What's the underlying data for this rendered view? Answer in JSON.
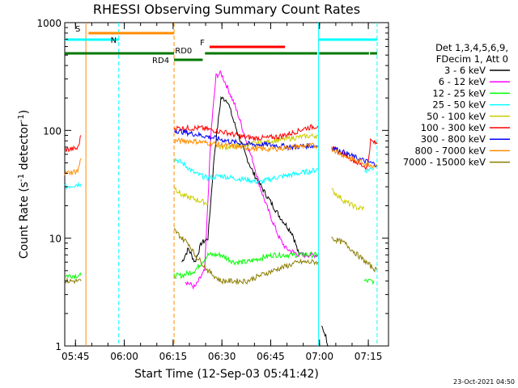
{
  "chart_data": {
    "type": "line",
    "title": "RHESSI Observing Summary Count Rates",
    "xlabel": "Start Time (12-Sep-03 05:41:42)",
    "ylabel_main": "Count Rate (s",
    "ylabel_sup1": "-1",
    "ylabel_mid": " detector",
    "ylabel_sup2": "-1",
    "ylabel_end": ")",
    "yscale": "log",
    "ylim": [
      1,
      1000
    ],
    "xlim_minutes": [
      0,
      99.5
    ],
    "x_ticks": [
      {
        "label": "05:45",
        "t": 3.3
      },
      {
        "label": "06:00",
        "t": 18.3
      },
      {
        "label": "06:15",
        "t": 33.3
      },
      {
        "label": "06:30",
        "t": 48.3
      },
      {
        "label": "06:45",
        "t": 63.3
      },
      {
        "label": "07:00",
        "t": 78.3
      },
      {
        "label": "07:15",
        "t": 93.3
      }
    ],
    "y_ticks": [
      {
        "label": "1",
        "v": 1
      },
      {
        "label": "10",
        "v": 10
      },
      {
        "label": "100",
        "v": 100
      },
      {
        "label": "1000",
        "v": 1000
      }
    ],
    "legend_header": [
      "Det 1,3,4,5,6,9,",
      "FDecim 1, Att 0"
    ],
    "series": [
      {
        "name": "3 - 6 keV",
        "color": "#000000",
        "points": [
          [
            0,
            null
          ],
          [
            33.6,
            null
          ],
          [
            36,
            6
          ],
          [
            38,
            8
          ],
          [
            40,
            6
          ],
          [
            42,
            9
          ],
          [
            44,
            10
          ],
          [
            46,
            60
          ],
          [
            48,
            200
          ],
          [
            50,
            190
          ],
          [
            52,
            120
          ],
          [
            55,
            65
          ],
          [
            58,
            40
          ],
          [
            62,
            25
          ],
          [
            66,
            16
          ],
          [
            70,
            11
          ],
          [
            72,
            7
          ],
          [
            76,
            null
          ],
          [
            79,
            1.5
          ],
          [
            80,
            1.3
          ],
          [
            81,
            1
          ]
        ]
      },
      {
        "name": "6 - 12 keV",
        "color": "#ff00ff",
        "points": [
          [
            0,
            null
          ],
          [
            33.6,
            null
          ],
          [
            37,
            4
          ],
          [
            40,
            3.5
          ],
          [
            43,
            5
          ],
          [
            45,
            100
          ],
          [
            46.5,
            320
          ],
          [
            48,
            340
          ],
          [
            50,
            250
          ],
          [
            52,
            180
          ],
          [
            54,
            120
          ],
          [
            56,
            75
          ],
          [
            58,
            50
          ],
          [
            60,
            30
          ],
          [
            62,
            20
          ],
          [
            64,
            14
          ],
          [
            66,
            10
          ],
          [
            68,
            8
          ],
          [
            70,
            7.5
          ],
          [
            72,
            7
          ],
          [
            74,
            7
          ],
          [
            76,
            7
          ],
          [
            77.8,
            7
          ]
        ]
      },
      {
        "name": "12 - 25 keV",
        "color": "#00ff00",
        "points": [
          [
            0,
            4.5
          ],
          [
            5,
            4.5
          ],
          [
            7,
            null
          ],
          [
            33.6,
            4.5
          ],
          [
            36,
            4.5
          ],
          [
            40,
            5
          ],
          [
            44,
            7
          ],
          [
            48,
            7
          ],
          [
            52,
            6
          ],
          [
            56,
            6
          ],
          [
            60,
            6.5
          ],
          [
            64,
            7
          ],
          [
            68,
            7
          ],
          [
            72,
            7
          ],
          [
            76,
            7
          ],
          [
            78,
            7
          ],
          [
            79,
            null
          ],
          [
            92,
            4
          ],
          [
            95,
            4
          ]
        ]
      },
      {
        "name": "25 - 50 keV",
        "color": "#00ffff",
        "points": [
          [
            0,
            30
          ],
          [
            5,
            32
          ],
          [
            6,
            null
          ],
          [
            33.6,
            55
          ],
          [
            36,
            50
          ],
          [
            38,
            45
          ],
          [
            40,
            40
          ],
          [
            42,
            38
          ],
          [
            44,
            36
          ],
          [
            48,
            38
          ],
          [
            52,
            36
          ],
          [
            56,
            35
          ],
          [
            60,
            33
          ],
          [
            64,
            36
          ],
          [
            68,
            38
          ],
          [
            72,
            40
          ],
          [
            76,
            42
          ],
          [
            77.8,
            44
          ],
          [
            79,
            null
          ],
          [
            92,
            42
          ],
          [
            95,
            45
          ]
        ]
      },
      {
        "name": "50 - 100 keV",
        "color": "#cccc00",
        "points": [
          [
            0,
            null
          ],
          [
            33.6,
            30
          ],
          [
            36,
            25
          ],
          [
            38,
            24
          ],
          [
            40,
            23
          ],
          [
            42,
            22
          ],
          [
            44,
            21
          ],
          [
            45,
            null
          ],
          [
            47,
            70
          ],
          [
            50,
            70
          ],
          [
            54,
            72
          ],
          [
            58,
            75
          ],
          [
            62,
            78
          ],
          [
            66,
            82
          ],
          [
            70,
            85
          ],
          [
            74,
            88
          ],
          [
            77.8,
            90
          ],
          [
            79,
            null
          ],
          [
            82,
            28
          ],
          [
            86,
            22
          ],
          [
            90,
            19
          ],
          [
            92,
            19
          ]
        ]
      },
      {
        "name": "100 - 300 keV",
        "color": "#ff0000",
        "points": [
          [
            0,
            66
          ],
          [
            4,
            68
          ],
          [
            5,
            90
          ],
          [
            6,
            null
          ],
          [
            33.6,
            105
          ],
          [
            38,
            105
          ],
          [
            42,
            105
          ],
          [
            46,
            100
          ],
          [
            50,
            95
          ],
          [
            54,
            88
          ],
          [
            58,
            85
          ],
          [
            62,
            85
          ],
          [
            66,
            88
          ],
          [
            70,
            95
          ],
          [
            74,
            105
          ],
          [
            77.8,
            110
          ],
          [
            79,
            null
          ],
          [
            82,
            68
          ],
          [
            86,
            60
          ],
          [
            90,
            50
          ],
          [
            93,
            45
          ],
          [
            94,
            80
          ],
          [
            96,
            75
          ]
        ]
      },
      {
        "name": "300 - 800 keV",
        "color": "#0000ff",
        "points": [
          [
            0,
            null
          ],
          [
            33.6,
            100
          ],
          [
            38,
            95
          ],
          [
            42,
            90
          ],
          [
            46,
            85
          ],
          [
            50,
            80
          ],
          [
            54,
            76
          ],
          [
            58,
            74
          ],
          [
            62,
            74
          ],
          [
            66,
            72
          ],
          [
            70,
            70
          ],
          [
            74,
            72
          ],
          [
            77.8,
            72
          ],
          [
            79,
            null
          ],
          [
            82,
            70
          ],
          [
            86,
            62
          ],
          [
            90,
            55
          ],
          [
            94,
            50
          ],
          [
            96,
            48
          ]
        ]
      },
      {
        "name": "800 - 7000 keV",
        "color": "#ff8c00",
        "points": [
          [
            0,
            40
          ],
          [
            4,
            42
          ],
          [
            5,
            55
          ],
          [
            6,
            null
          ],
          [
            33.6,
            80
          ],
          [
            38,
            80
          ],
          [
            42,
            78
          ],
          [
            46,
            75
          ],
          [
            50,
            72
          ],
          [
            54,
            70
          ],
          [
            58,
            68
          ],
          [
            62,
            67
          ],
          [
            66,
            68
          ],
          [
            70,
            70
          ],
          [
            74,
            72
          ],
          [
            77.8,
            72
          ],
          [
            79,
            null
          ],
          [
            82,
            68
          ],
          [
            86,
            58
          ],
          [
            90,
            52
          ],
          [
            94,
            48
          ],
          [
            96,
            47
          ]
        ]
      },
      {
        "name": "7000 - 15000 keV",
        "color": "#8b7d00",
        "points": [
          [
            0,
            4
          ],
          [
            5,
            4
          ],
          [
            6,
            null
          ],
          [
            33.6,
            12
          ],
          [
            36,
            10
          ],
          [
            38,
            9
          ],
          [
            40,
            7
          ],
          [
            42,
            6
          ],
          [
            44,
            5
          ],
          [
            48,
            4
          ],
          [
            52,
            4
          ],
          [
            56,
            4
          ],
          [
            60,
            4.5
          ],
          [
            64,
            5
          ],
          [
            68,
            5.5
          ],
          [
            72,
            6
          ],
          [
            76,
            6
          ],
          [
            77.8,
            6
          ],
          [
            79,
            null
          ],
          [
            82,
            10
          ],
          [
            86,
            9
          ],
          [
            90,
            7
          ],
          [
            94,
            5.5
          ],
          [
            96,
            5
          ]
        ]
      }
    ],
    "vertical_markers": [
      {
        "t": 6.5,
        "color": "#ff8c00",
        "style": "solid"
      },
      {
        "t": 16.6,
        "color": "#00ffff",
        "style": "dashed"
      },
      {
        "t": 33.6,
        "color": "#ff8c00",
        "style": "dashed"
      },
      {
        "t": 78.0,
        "color": "#00ffff",
        "style": "solid"
      },
      {
        "t": 96.0,
        "color": "#00ffff",
        "style": "dashed"
      }
    ],
    "flag_bars": [
      {
        "label": "S",
        "color": "#ff8c00",
        "segments": [
          [
            7.3,
            33.6
          ]
        ],
        "level": "S"
      },
      {
        "label": "N",
        "color": "#00ffff",
        "segments": [
          [
            0,
            16.6
          ],
          [
            78.0,
            96.0
          ]
        ],
        "level": "N"
      },
      {
        "label": "F",
        "color": "#ff0000",
        "segments": [
          [
            44.5,
            67.7
          ]
        ],
        "level": "F"
      },
      {
        "label": "RD0",
        "color": "#007700",
        "segments": [
          [
            0,
            33.6
          ],
          [
            43.1,
            77.6
          ],
          [
            78.2,
            93.5
          ],
          [
            93.8,
            96.0
          ]
        ],
        "level": "RD0"
      },
      {
        "label": "RD4",
        "color": "#007700",
        "segments": [
          [
            33.6,
            42.4
          ]
        ],
        "level": "RD4"
      }
    ]
  },
  "timestamp": "23-Oct-2021 04:50"
}
